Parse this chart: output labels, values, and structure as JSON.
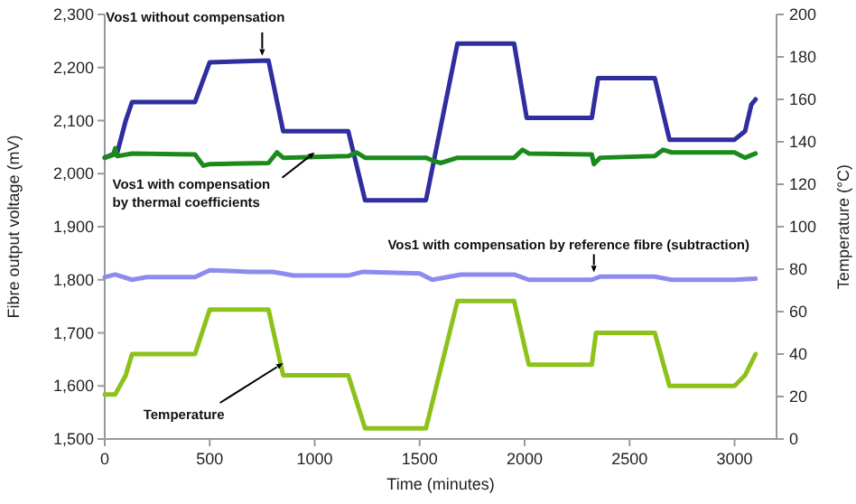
{
  "chart_data": {
    "type": "line",
    "xlabel": "Time (minutes)",
    "ylabel": "Fibre output voltage (mV)",
    "y2label": "Temperature (°C)",
    "xlim": [
      0,
      3200
    ],
    "xticks": [
      0,
      500,
      1000,
      1500,
      2000,
      2500,
      3000
    ],
    "ylim": [
      1500,
      2300
    ],
    "yticks": [
      {
        "value": 1500,
        "label": "1,500"
      },
      {
        "value": 1600,
        "label": "1,600"
      },
      {
        "value": 1700,
        "label": "1,700"
      },
      {
        "value": 1800,
        "label": "1,800"
      },
      {
        "value": 1900,
        "label": "1,900"
      },
      {
        "value": 2000,
        "label": "2,000"
      },
      {
        "value": 2100,
        "label": "2,100"
      },
      {
        "value": 2200,
        "label": "2,200"
      },
      {
        "value": 2300,
        "label": "2,300"
      }
    ],
    "y2lim": [
      0,
      200
    ],
    "y2ticks": [
      0,
      20,
      40,
      60,
      80,
      100,
      120,
      140,
      160,
      180,
      200
    ],
    "grid": false,
    "marker": "none",
    "line_style": "solid",
    "series": [
      {
        "color": "#2e2e9e",
        "x": [
          0,
          60,
          100,
          130,
          430,
          500,
          780,
          850,
          1160,
          1240,
          1530,
          1680,
          1950,
          2010,
          2320,
          2350,
          2620,
          2690,
          3000,
          3050,
          3080,
          3100
        ],
        "values": [
          2030,
          2040,
          2100,
          2135,
          2135,
          2210,
          2213,
          2080,
          2080,
          1950,
          1950,
          2245,
          2245,
          2105,
          2105,
          2180,
          2180,
          2064,
          2064,
          2080,
          2130,
          2140
        ]
      },
      {
        "color": "#1a8a1a",
        "x": [
          0,
          40,
          50,
          60,
          130,
          430,
          470,
          500,
          780,
          820,
          850,
          1160,
          1200,
          1240,
          1530,
          1560,
          1600,
          1680,
          1950,
          1990,
          2020,
          2320,
          2330,
          2360,
          2620,
          2660,
          2700,
          3000,
          3050,
          3100
        ],
        "values": [
          2030,
          2035,
          2048,
          2033,
          2038,
          2036,
          2015,
          2018,
          2020,
          2040,
          2030,
          2033,
          2040,
          2030,
          2030,
          2025,
          2020,
          2030,
          2030,
          2045,
          2038,
          2036,
          2018,
          2030,
          2033,
          2045,
          2040,
          2040,
          2030,
          2038
        ]
      },
      {
        "color": "#8c8cf0",
        "x": [
          0,
          50,
          130,
          200,
          430,
          500,
          700,
          800,
          900,
          1160,
          1230,
          1500,
          1560,
          1700,
          1950,
          2020,
          2320,
          2360,
          2620,
          2700,
          3000,
          3100
        ],
        "values": [
          1805,
          1810,
          1800,
          1805,
          1805,
          1818,
          1815,
          1815,
          1808,
          1808,
          1815,
          1812,
          1800,
          1810,
          1810,
          1800,
          1800,
          1806,
          1806,
          1800,
          1800,
          1802
        ]
      },
      {
        "color": "#8cc21a",
        "axis": "y2",
        "x": [
          0,
          50,
          100,
          130,
          430,
          500,
          780,
          850,
          1160,
          1240,
          1530,
          1680,
          1950,
          2020,
          2320,
          2340,
          2620,
          2690,
          3000,
          3050,
          3100
        ],
        "values": [
          21,
          21,
          30,
          40,
          40,
          61,
          61,
          30,
          30,
          5,
          5,
          65,
          65,
          35,
          35,
          50,
          50,
          25,
          25,
          30,
          40
        ]
      }
    ],
    "annotations": [
      {
        "text": "Vos1 without compensation",
        "x": 750,
        "y": 2222
      },
      {
        "text": "Vos1 with compensation\nby thermal coefficients",
        "x": 1000,
        "y": 2040
      },
      {
        "text": "Vos1 with compensation by reference fibre (subtraction)",
        "x": 2330,
        "y": 1814
      },
      {
        "text": "Temperature",
        "x": 850,
        "y": 1643
      }
    ]
  }
}
